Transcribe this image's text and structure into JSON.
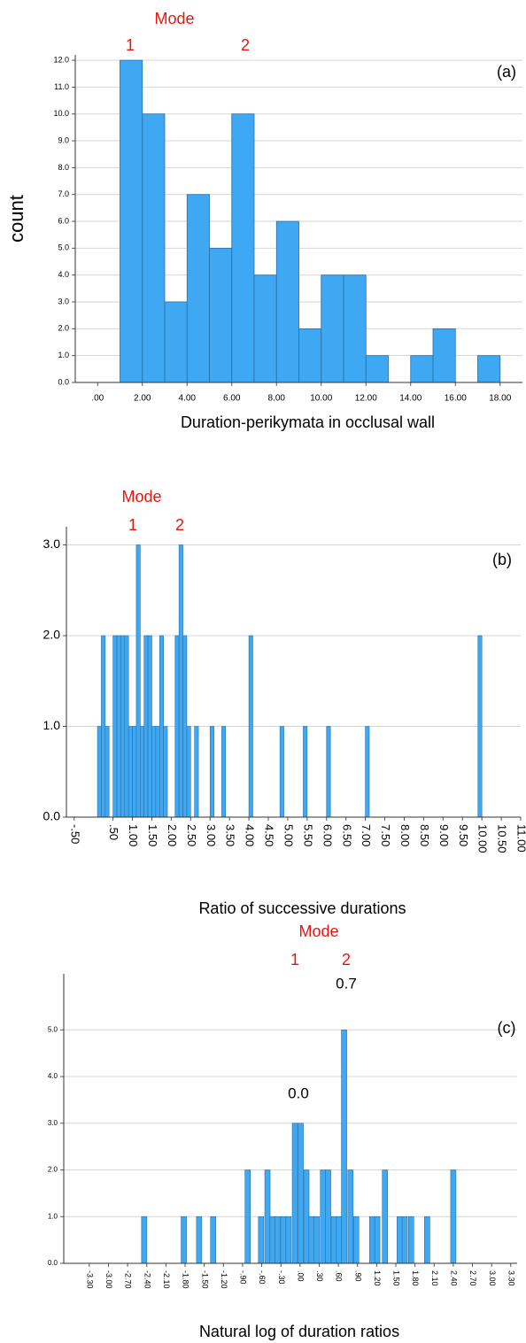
{
  "chart_data": [
    {
      "type": "histogram",
      "color": "#3ea8f2",
      "edge_color": "#2b6ea3",
      "grid": true,
      "ylabel": "count",
      "xlabel": "Duration-perikymata in occlusal wall",
      "annotations": {
        "mode": "Mode",
        "mode_1": "1",
        "mode_2": "2",
        "panel": "(a)"
      },
      "bins": [
        1,
        2,
        3,
        4,
        5,
        6,
        7,
        8,
        9,
        10,
        11,
        12,
        13,
        14,
        15,
        16,
        17,
        18
      ],
      "values": [
        12,
        10,
        3,
        7,
        5,
        10,
        4,
        6,
        2,
        4,
        4,
        1,
        0,
        1,
        2,
        0,
        1
      ],
      "xlim": [
        -1,
        19
      ],
      "xticks": [
        {
          "value": 0,
          "label": ".00"
        },
        {
          "value": 2,
          "label": "2.00"
        },
        {
          "value": 4,
          "label": "4.00"
        },
        {
          "value": 6,
          "label": "6.00"
        },
        {
          "value": 8,
          "label": "8.00"
        },
        {
          "value": 10,
          "label": "10.00"
        },
        {
          "value": 12,
          "label": "12.00"
        },
        {
          "value": 14,
          "label": "14.00"
        },
        {
          "value": 16,
          "label": "16.00"
        },
        {
          "value": 18,
          "label": "18.00"
        }
      ],
      "ylim": [
        0,
        12.2
      ],
      "yticks": [
        {
          "value": 0,
          "label": "0.0"
        },
        {
          "value": 1,
          "label": "1.0"
        },
        {
          "value": 2,
          "label": "2.0"
        },
        {
          "value": 3,
          "label": "3.0"
        },
        {
          "value": 4,
          "label": "4.0"
        },
        {
          "value": 5,
          "label": "5.0"
        },
        {
          "value": 6,
          "label": "6.0"
        },
        {
          "value": 7,
          "label": "7.0"
        },
        {
          "value": 8,
          "label": "8.0"
        },
        {
          "value": 9,
          "label": "9.0"
        },
        {
          "value": 10,
          "label": "10.0"
        },
        {
          "value": 11,
          "label": "11.0"
        },
        {
          "value": 12,
          "label": "12.0"
        }
      ]
    },
    {
      "type": "bar",
      "color": "#3ea8f2",
      "edge_color": "#2b6ea3",
      "grid": true,
      "xlabel": "Ratio of successive durations",
      "annotations": {
        "mode": "Mode",
        "mode_1": "1",
        "mode_2": "2",
        "panel": "(b)"
      },
      "x": [
        0.15,
        0.25,
        0.35,
        0.55,
        0.65,
        0.75,
        0.85,
        0.95,
        1.05,
        1.15,
        1.25,
        1.35,
        1.45,
        1.55,
        1.65,
        1.75,
        1.85,
        2.15,
        2.25,
        2.35,
        2.45,
        2.65,
        3.05,
        3.35,
        4.05,
        4.85,
        5.45,
        6.05,
        7.05,
        9.95
      ],
      "values": [
        1,
        2,
        1,
        2,
        2,
        2,
        2,
        1,
        1,
        3,
        1,
        2,
        2,
        1,
        1,
        2,
        1,
        2,
        3,
        2,
        1,
        1,
        1,
        1,
        2,
        1,
        1,
        1,
        1,
        2
      ],
      "xlim": [
        -0.7,
        11.0
      ],
      "xticks": [
        {
          "value": -0.5,
          "label": "-.50"
        },
        {
          "value": 0.5,
          "label": ".50"
        },
        {
          "value": 1,
          "label": "1.00"
        },
        {
          "value": 1.5,
          "label": "1.50"
        },
        {
          "value": 2,
          "label": "2.00"
        },
        {
          "value": 2.5,
          "label": "2.50"
        },
        {
          "value": 3,
          "label": "3.00"
        },
        {
          "value": 3.5,
          "label": "3.50"
        },
        {
          "value": 4,
          "label": "4.00"
        },
        {
          "value": 4.5,
          "label": "4.50"
        },
        {
          "value": 5,
          "label": "5.00"
        },
        {
          "value": 5.5,
          "label": "5.50"
        },
        {
          "value": 6,
          "label": "6.00"
        },
        {
          "value": 6.5,
          "label": "6.50"
        },
        {
          "value": 7,
          "label": "7.00"
        },
        {
          "value": 7.5,
          "label": "7.50"
        },
        {
          "value": 8,
          "label": "8.00"
        },
        {
          "value": 8.5,
          "label": "8.50"
        },
        {
          "value": 9,
          "label": "9.00"
        },
        {
          "value": 9.5,
          "label": "9.50"
        },
        {
          "value": 10,
          "label": "10.00"
        },
        {
          "value": 10.5,
          "label": "10.50"
        },
        {
          "value": 11,
          "label": "11.00"
        }
      ],
      "ylim": [
        0,
        3.2
      ],
      "yticks": [
        {
          "value": 0,
          "label": "0.0"
        },
        {
          "value": 1,
          "label": "1.0"
        },
        {
          "value": 2,
          "label": "2.0"
        },
        {
          "value": 3,
          "label": "3.0"
        }
      ]
    },
    {
      "type": "bar",
      "color": "#3ea8f2",
      "edge_color": "#2b6ea3",
      "grid": true,
      "xlabel": "Natural log of duration ratios",
      "annotations": {
        "mode": "Mode",
        "mode_1": "1",
        "mode_2": "2",
        "mode_1_value": "0.0",
        "mode_2_value": "0.7",
        "panel": "(c)"
      },
      "x": [
        -2.44,
        -1.82,
        -1.58,
        -1.36,
        -0.82,
        -0.61,
        -0.51,
        -0.43,
        -0.35,
        -0.26,
        -0.18,
        -0.08,
        0.01,
        0.1,
        0.18,
        0.26,
        0.36,
        0.44,
        0.53,
        0.61,
        0.69,
        0.79,
        0.88,
        1.13,
        1.21,
        1.33,
        1.56,
        1.64,
        1.74,
        1.99,
        2.4
      ],
      "values": [
        1,
        1,
        1,
        1,
        2,
        1,
        2,
        1,
        1,
        1,
        1,
        3,
        3,
        2,
        1,
        1,
        2,
        2,
        1,
        1,
        5,
        2,
        1,
        1,
        1,
        2,
        1,
        1,
        1,
        1,
        2
      ],
      "xlim": [
        -3.7,
        3.4
      ],
      "xticks": [
        {
          "value": -3.3,
          "label": "-3.30"
        },
        {
          "value": -3,
          "label": "-3.00"
        },
        {
          "value": -2.7,
          "label": "-2.70"
        },
        {
          "value": -2.4,
          "label": "-2.40"
        },
        {
          "value": -2.1,
          "label": "-2.10"
        },
        {
          "value": -1.8,
          "label": "-1.80"
        },
        {
          "value": -1.5,
          "label": "-1.50"
        },
        {
          "value": -1.2,
          "label": "-1.20"
        },
        {
          "value": -0.9,
          "label": "-.90"
        },
        {
          "value": -0.6,
          "label": "-.60"
        },
        {
          "value": -0.3,
          "label": "-.30"
        },
        {
          "value": 0,
          "label": ".00"
        },
        {
          "value": 0.3,
          "label": ".30"
        },
        {
          "value": 0.6,
          "label": ".60"
        },
        {
          "value": 0.9,
          "label": ".90"
        },
        {
          "value": 1.2,
          "label": "1.20"
        },
        {
          "value": 1.5,
          "label": "1.50"
        },
        {
          "value": 1.8,
          "label": "1.80"
        },
        {
          "value": 2.1,
          "label": "2.10"
        },
        {
          "value": 2.4,
          "label": "2.40"
        },
        {
          "value": 2.7,
          "label": "2.70"
        },
        {
          "value": 3,
          "label": "3.00"
        },
        {
          "value": 3.3,
          "label": "3.30"
        }
      ],
      "ylim": [
        0,
        6.2
      ],
      "yticks": [
        {
          "value": 0,
          "label": "0.0"
        },
        {
          "value": 1,
          "label": "1.0"
        },
        {
          "value": 2,
          "label": "2.0"
        },
        {
          "value": 3,
          "label": "3.0"
        },
        {
          "value": 4,
          "label": "4.0"
        },
        {
          "value": 5,
          "label": "5.0"
        }
      ]
    }
  ]
}
